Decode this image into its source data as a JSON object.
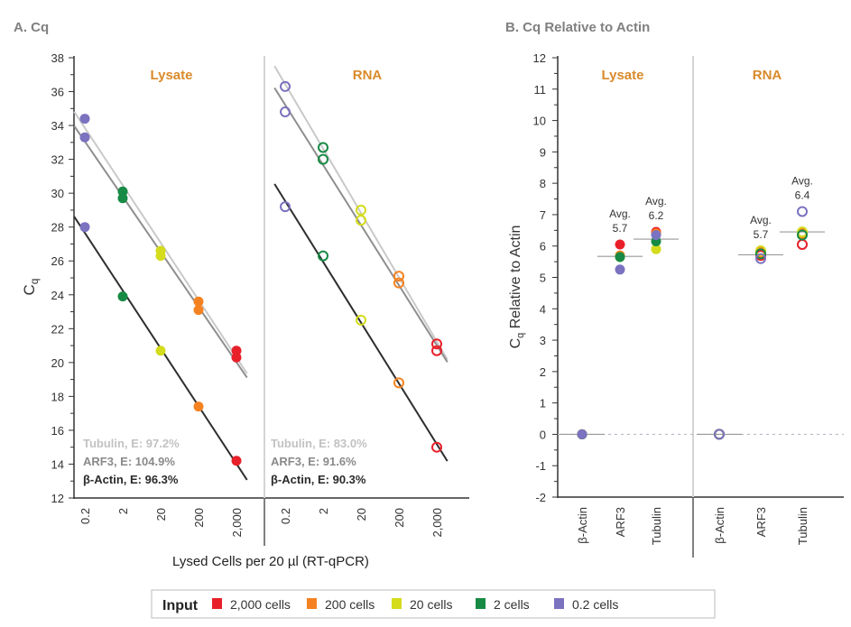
{
  "colors": {
    "2000": "#e8202a",
    "200": "#f58220",
    "20": "#d4dc1c",
    "2": "#178a45",
    "0.2": "#7b72c0",
    "tubulin_line": "#c9c9c9",
    "arf3_line": "#8e8e8e",
    "actin_line": "#2e2e2e",
    "panel_label": "#d98a2a",
    "title": "#808080"
  },
  "chart_data": [
    {
      "type": "scatter",
      "title": "A. Cq",
      "ylabel": "Cq",
      "xlabel": "Lysed Cells per 20 µl (RT-qPCR)",
      "x_scale": "log",
      "x_ticks": [
        "0.2",
        "2",
        "20",
        "200",
        "2,000"
      ],
      "x_values": [
        0.2,
        2,
        20,
        200,
        2000
      ],
      "ylim": [
        12,
        38
      ],
      "y_ticks": [
        12,
        14,
        16,
        18,
        20,
        22,
        24,
        26,
        28,
        30,
        32,
        34,
        36,
        38
      ],
      "panels": [
        {
          "label": "Lysate",
          "marker": "filled",
          "series": [
            {
              "name": "Tubulin",
              "efficiency": "Tubulin, E: 97.2%",
              "values": [
                34.4,
                30.1,
                26.6,
                23.6,
                20.7
              ]
            },
            {
              "name": "ARF3",
              "efficiency": "ARF3, E: 104.9%",
              "values": [
                33.3,
                29.7,
                26.3,
                23.1,
                20.3
              ]
            },
            {
              "name": "β-Actin",
              "efficiency": "β-Actin, E: 96.3%",
              "values": [
                28.0,
                23.9,
                20.7,
                17.4,
                14.2
              ]
            }
          ]
        },
        {
          "label": "RNA",
          "marker": "open",
          "series": [
            {
              "name": "Tubulin",
              "efficiency": "Tubulin, E: 83.0%",
              "values": [
                36.3,
                32.7,
                29.0,
                25.1,
                21.1
              ]
            },
            {
              "name": "ARF3",
              "efficiency": "ARF3, E: 91.6%",
              "values": [
                34.8,
                32.0,
                28.4,
                24.7,
                20.7
              ]
            },
            {
              "name": "β-Actin",
              "efficiency": "β-Actin, E: 90.3%",
              "values": [
                29.2,
                26.3,
                22.5,
                18.8,
                15.0
              ]
            }
          ]
        }
      ]
    },
    {
      "type": "scatter",
      "title": "B. Cq Relative to Actin",
      "ylabel": "Cq Relative to Actin",
      "ylim": [
        -2,
        12
      ],
      "y_ticks": [
        -2,
        -1,
        0,
        1,
        2,
        3,
        4,
        5,
        6,
        7,
        8,
        9,
        10,
        11,
        12
      ],
      "categories": [
        "β-Actin",
        "ARF3",
        "Tubulin"
      ],
      "panels": [
        {
          "label": "Lysate",
          "marker": "filled",
          "groups": [
            {
              "category": "β-Actin",
              "avg": 0,
              "avg_label": "",
              "points": {
                "2000": 0,
                "200": 0,
                "20": 0,
                "2": 0,
                "0.2": 0
              }
            },
            {
              "category": "ARF3",
              "avg": 5.67,
              "avg_label": [
                "Avg.",
                "5.7"
              ],
              "points": {
                "2000": 6.05,
                "200": 5.7,
                "20": 5.65,
                "2": 5.65,
                "0.2": 5.25
              }
            },
            {
              "category": "Tubulin",
              "avg": 6.22,
              "avg_label": [
                "Avg.",
                "6.2"
              ],
              "points": {
                "2000": 6.45,
                "200": 6.4,
                "20": 5.9,
                "2": 6.15,
                "0.2": 6.35
              }
            }
          ]
        },
        {
          "label": "RNA",
          "marker": "open",
          "groups": [
            {
              "category": "β-Actin",
              "avg": 0,
              "avg_label": "",
              "points": {
                "2000": 0,
                "200": 0,
                "20": 0,
                "2": 0,
                "0.2": 0
              }
            },
            {
              "category": "ARF3",
              "avg": 5.72,
              "avg_label": [
                "Avg.",
                "5.7"
              ],
              "points": {
                "2000": 5.7,
                "200": 5.8,
                "20": 5.85,
                "2": 5.75,
                "0.2": 5.6
              }
            },
            {
              "category": "Tubulin",
              "avg": 6.45,
              "avg_label": [
                "Avg.",
                "6.4"
              ],
              "points": {
                "2000": 6.05,
                "200": 6.4,
                "20": 6.45,
                "2": 6.35,
                "0.2": 7.1
              }
            }
          ]
        }
      ]
    }
  ],
  "legend": {
    "title": "Input",
    "placement": "bottom",
    "items": [
      {
        "key": "2000",
        "label": "2,000 cells"
      },
      {
        "key": "200",
        "label": "200 cells"
      },
      {
        "key": "20",
        "label": "20 cells"
      },
      {
        "key": "2",
        "label": "2 cells"
      },
      {
        "key": "0.2",
        "label": "0.2 cells"
      }
    ]
  }
}
